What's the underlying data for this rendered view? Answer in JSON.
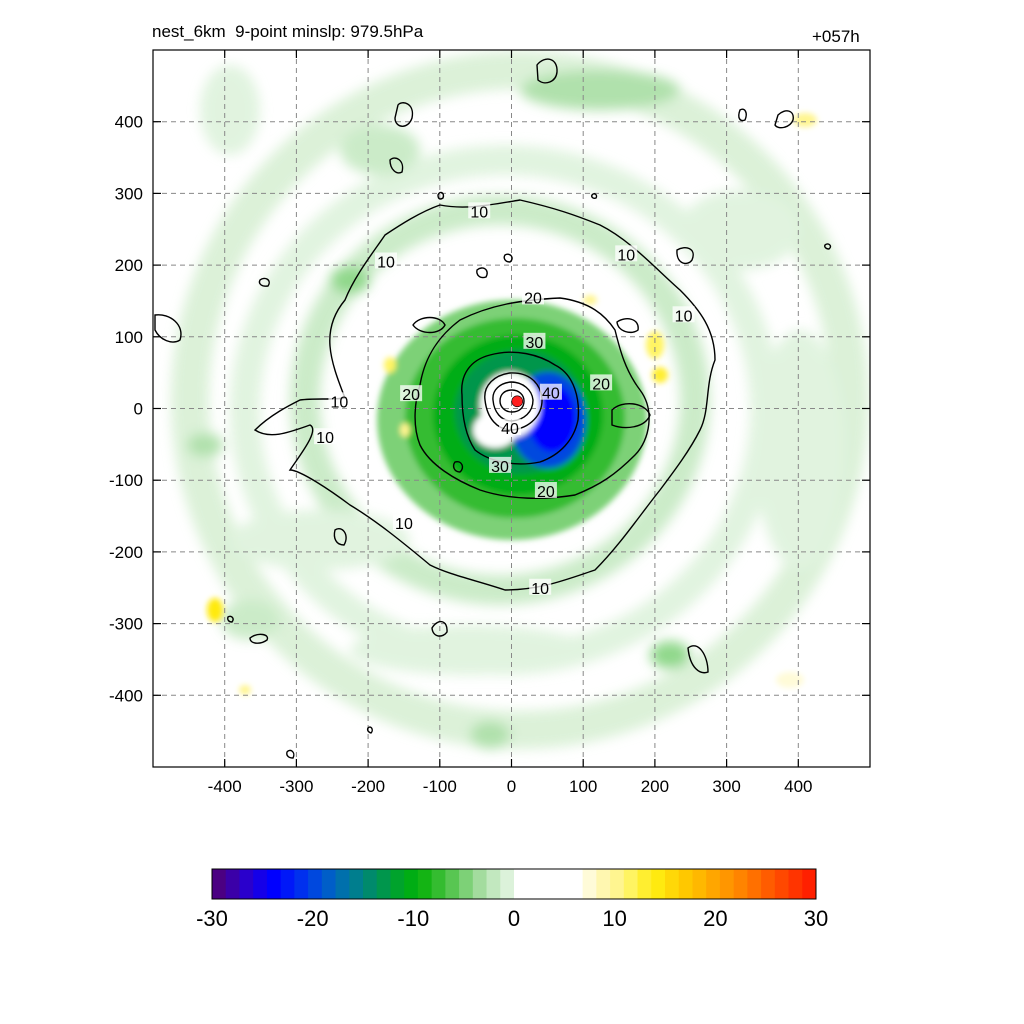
{
  "title_left": "nest_6km  9-point minslp: 979.5hPa",
  "title_right": "+057h",
  "chart_data": {
    "type": "heatmap",
    "xlim": [
      -500,
      500
    ],
    "ylim": [
      -500,
      500
    ],
    "x_ticks": [
      -400,
      -300,
      -200,
      -100,
      0,
      100,
      200,
      300,
      400
    ],
    "y_ticks": [
      400,
      300,
      200,
      100,
      0,
      -100,
      -200,
      -300,
      -400
    ],
    "x_tick_labels": [
      "-400",
      "-300",
      "-200",
      "-100",
      "0",
      "100",
      "200",
      "300",
      "400"
    ],
    "y_tick_labels": [
      "400",
      "300",
      "200",
      "100",
      "0",
      "-100",
      "-200",
      "-300",
      "-400"
    ],
    "grid": true,
    "storm_center": {
      "x": 8,
      "y": 10,
      "color": "#ff2020"
    },
    "contour_levels": [
      10,
      20,
      30,
      40
    ],
    "contour_labels": [
      {
        "text": "10",
        "x": -45,
        "y": 275
      },
      {
        "text": "10",
        "x": 160,
        "y": 215
      },
      {
        "text": "10",
        "x": -175,
        "y": 205
      },
      {
        "text": "10",
        "x": 240,
        "y": 130
      },
      {
        "text": "10",
        "x": -240,
        "y": 10
      },
      {
        "text": "10",
        "x": -260,
        "y": -40
      },
      {
        "text": "10",
        "x": -150,
        "y": -160
      },
      {
        "text": "10",
        "x": 40,
        "y": -250
      },
      {
        "text": "20",
        "x": 30,
        "y": 155
      },
      {
        "text": "20",
        "x": 125,
        "y": 35
      },
      {
        "text": "20",
        "x": -140,
        "y": 20
      },
      {
        "text": "20",
        "x": 48,
        "y": -115
      },
      {
        "text": "30",
        "x": 32,
        "y": 93
      },
      {
        "text": "30",
        "x": -16,
        "y": -80
      },
      {
        "text": "40",
        "x": 55,
        "y": 22
      },
      {
        "text": "40",
        "x": -2,
        "y": -27
      }
    ],
    "colorbar": {
      "min": -30,
      "max": 30,
      "tick_labels": [
        "-30",
        "-20",
        "-10",
        "0",
        "10",
        "20",
        "30"
      ],
      "colors": [
        "#4b0082",
        "#3b00a8",
        "#2a00cc",
        "#1500e8",
        "#0000ff",
        "#0018f8",
        "#0030ee",
        "#0048de",
        "#005ec8",
        "#0070ac",
        "#007e8e",
        "#008a6c",
        "#00964c",
        "#00a32c",
        "#00ad14",
        "#14b414",
        "#34bc30",
        "#58c652",
        "#7dd177",
        "#a3dc9e",
        "#c2e8bf",
        "#dcf2da",
        "#ffffff",
        "#ffffff",
        "#ffffff",
        "#ffffff",
        "#ffffff",
        "#fffbd8",
        "#fff7b0",
        "#fff590",
        "#fff462",
        "#ffee30",
        "#ffea10",
        "#ffd808",
        "#ffc800",
        "#ffb800",
        "#ffa600",
        "#ff9600",
        "#ff8400",
        "#ff7000",
        "#ff5c00",
        "#ff4800",
        "#ff3400",
        "#ff2000"
      ]
    }
  }
}
